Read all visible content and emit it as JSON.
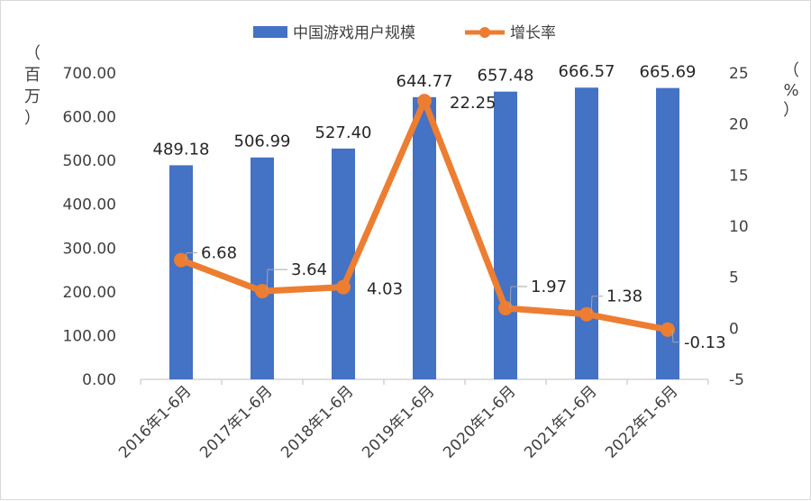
{
  "chart_data": {
    "type": "bar+line",
    "categories": [
      "2016年1-6月",
      "2017年1-6月",
      "2018年1-6月",
      "2019年1-6月",
      "2020年1-6月",
      "2021年1-6月",
      "2022年1-6月"
    ],
    "series": [
      {
        "name": "中国游戏用户规模",
        "type": "bar",
        "axis": "left",
        "color": "#4472C4",
        "values": [
          489.18,
          506.99,
          527.4,
          644.77,
          657.48,
          666.57,
          665.69
        ],
        "labels": [
          "489.18",
          "506.99",
          "527.40",
          "644.77",
          "657.48",
          "666.57",
          "665.69"
        ]
      },
      {
        "name": "增长率",
        "type": "line",
        "axis": "right",
        "color": "#ED7D31",
        "values": [
          6.68,
          3.64,
          4.03,
          22.25,
          1.97,
          1.38,
          -0.13
        ],
        "labels": [
          "6.68",
          "3.64",
          "4.03",
          "22.25",
          "1.97",
          "1.38",
          "-0.13"
        ]
      }
    ],
    "y_left": {
      "label": [
        "（",
        "百",
        "万",
        "）"
      ],
      "range": [
        0,
        700
      ],
      "ticks": [
        "0.00",
        "100.00",
        "200.00",
        "300.00",
        "400.00",
        "500.00",
        "600.00",
        "700.00"
      ]
    },
    "y_right": {
      "label": [
        "（",
        "%",
        "）"
      ],
      "range": [
        -5,
        25
      ],
      "ticks": [
        "-5",
        "0",
        "5",
        "10",
        "15",
        "20",
        "25"
      ]
    },
    "legend": {
      "position": "top"
    },
    "grid": false
  }
}
